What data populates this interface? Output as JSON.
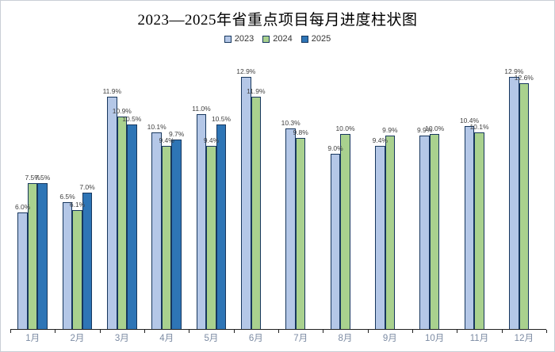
{
  "window": {
    "background": "#ffffff",
    "border_color": "#c9ced6"
  },
  "chart_data": {
    "type": "bar",
    "title": "2023—2025年省重点项目每月进度柱状图",
    "categories": [
      "1月",
      "2月",
      "3月",
      "4月",
      "5月",
      "6月",
      "7月",
      "8月",
      "9月",
      "10月",
      "11月",
      "12月"
    ],
    "series": [
      {
        "name": "2023",
        "color": "#B4C7E7",
        "values": [
          6.0,
          6.5,
          11.9,
          10.1,
          11.0,
          12.9,
          10.3,
          9.0,
          9.4,
          9.9,
          10.4,
          12.9
        ],
        "labels": [
          "6.0%",
          "6.5%",
          "11.9%",
          "10.1%",
          "11.0%",
          "12.9%",
          "10.3%",
          "9.0%",
          "9.4%",
          "9.9%",
          "10.4%",
          "12.9%"
        ]
      },
      {
        "name": "2024",
        "color": "#A9D18E",
        "values": [
          7.5,
          6.1,
          10.9,
          9.4,
          9.4,
          11.9,
          9.8,
          10.0,
          9.9,
          10.0,
          10.1,
          12.6
        ],
        "labels": [
          "7.5%",
          "6.1%",
          "10.9%",
          "9.4%",
          "9.4%",
          "11.9%",
          "9.8%",
          "10.0%",
          "9.9%",
          "10.0%",
          "10.1%",
          "12.6%"
        ]
      },
      {
        "name": "2025",
        "color": "#2E75B6",
        "values": [
          7.5,
          7.0,
          10.5,
          9.7,
          10.5,
          null,
          null,
          null,
          null,
          null,
          null,
          null
        ],
        "labels": [
          "7.5%",
          "7.0%",
          "10.5%",
          "9.7%",
          "10.5%",
          null,
          null,
          null,
          null,
          null,
          null,
          null
        ]
      }
    ],
    "value_suffix": "%",
    "ylim": [
      0,
      13.2
    ],
    "grid": false,
    "legend_position": "top",
    "bar_outline_color": "#17375E",
    "axis_color": "#1f1f1f",
    "value_label_color": "#3F3F3F",
    "category_label_color": "#7C8BA3",
    "legend_text_color": "#333333",
    "title_color": "#000000"
  }
}
